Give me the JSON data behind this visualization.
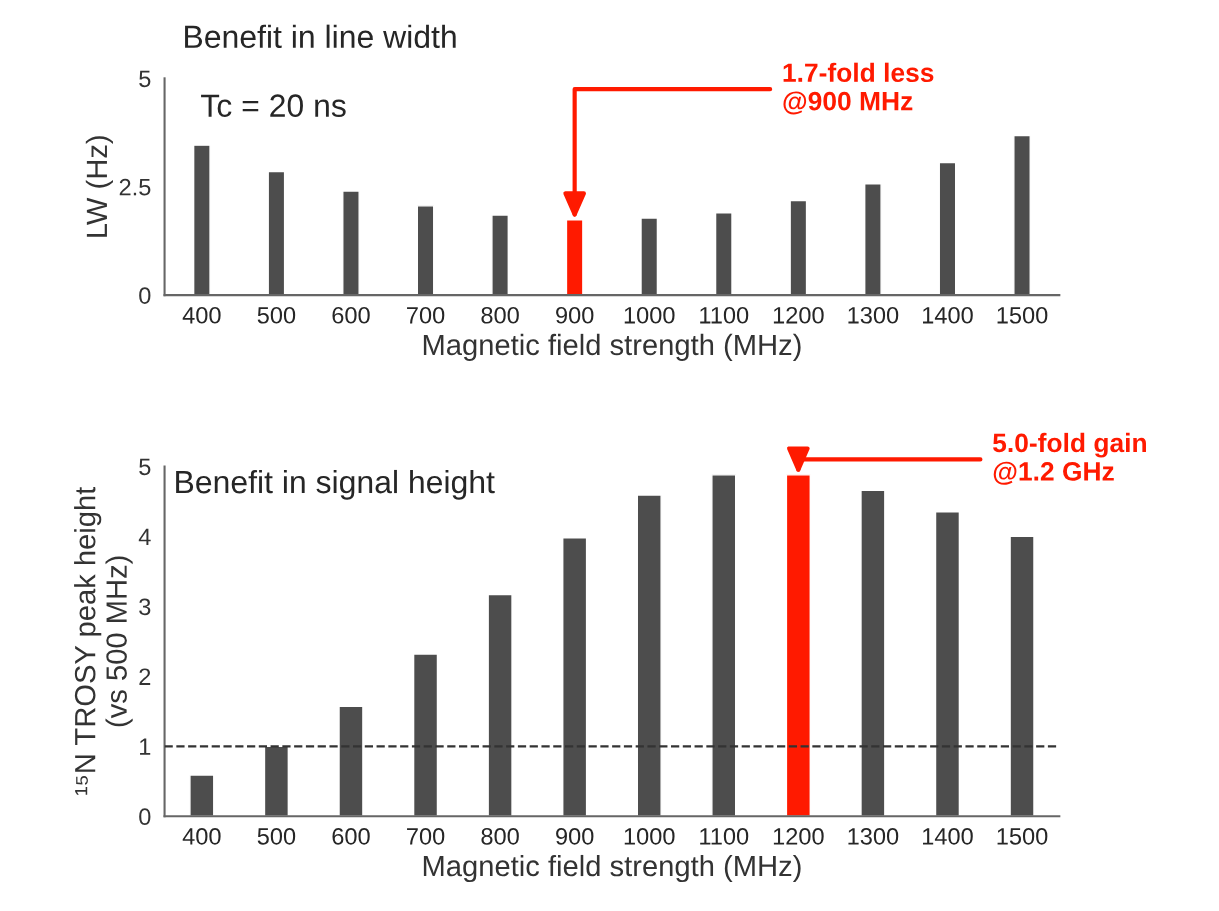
{
  "chart_data": [
    {
      "type": "bar",
      "title": "Benefit in line width",
      "xlabel": "Magnetic field strength (MHz)",
      "ylabel": "LW (Hz)",
      "categories": [
        "400",
        "500",
        "600",
        "700",
        "800",
        "900",
        "1000",
        "1100",
        "1200",
        "1300",
        "1400",
        "1500"
      ],
      "values": [
        3.46,
        2.85,
        2.4,
        2.06,
        1.85,
        1.74,
        1.78,
        1.9,
        2.18,
        2.57,
        3.06,
        3.68
      ],
      "colors": [
        "#4d4d4d",
        "#4d4d4d",
        "#4d4d4d",
        "#4d4d4d",
        "#4d4d4d",
        "#ff1a00",
        "#4d4d4d",
        "#4d4d4d",
        "#4d4d4d",
        "#4d4d4d",
        "#4d4d4d",
        "#4d4d4d"
      ],
      "ylim": [
        0,
        5
      ],
      "yticks": [
        0,
        2.5,
        5
      ],
      "grid": false,
      "annotations": [
        "Tc = 20 ns",
        {
          "text": "1.7-fold less\n@900 MHz",
          "x": "900",
          "y": 1.74
        }
      ]
    },
    {
      "type": "bar",
      "title": "Benefit in signal height",
      "xlabel": "Magnetic field strength (MHz)",
      "ylabel": "¹⁵N TROSY peak height\n(vs 500 MHz)",
      "categories": [
        "400",
        "500",
        "600",
        "700",
        "800",
        "900",
        "1000",
        "1100",
        "1200",
        "1300",
        "1400",
        "1500"
      ],
      "values": [
        0.59,
        1.0,
        1.57,
        2.32,
        3.17,
        3.98,
        4.59,
        4.88,
        4.88,
        4.66,
        4.35,
        4.0
      ],
      "colors": [
        "#4d4d4d",
        "#4d4d4d",
        "#4d4d4d",
        "#4d4d4d",
        "#4d4d4d",
        "#4d4d4d",
        "#4d4d4d",
        "#4d4d4d",
        "#ff1a00",
        "#4d4d4d",
        "#4d4d4d",
        "#4d4d4d"
      ],
      "ylim": [
        0,
        5
      ],
      "yticks": [
        0,
        1,
        2,
        3,
        4,
        5
      ],
      "grid": false,
      "ref_lines": [
        {
          "axis": "y",
          "value": 1,
          "color": "#333333",
          "line_style": "dashed"
        }
      ],
      "annotations": [
        {
          "text": "5.0-fold gain\n@1.2 GHz",
          "x": "1200",
          "y": 4.88
        }
      ]
    }
  ]
}
